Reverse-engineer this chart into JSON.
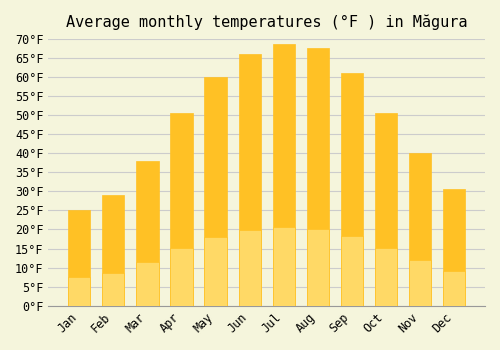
{
  "title": "Average monthly temperatures (°F ) in Măgura",
  "months": [
    "Jan",
    "Feb",
    "Mar",
    "Apr",
    "May",
    "Jun",
    "Jul",
    "Aug",
    "Sep",
    "Oct",
    "Nov",
    "Dec"
  ],
  "values": [
    25,
    29,
    38,
    50.5,
    60,
    66,
    68.5,
    67.5,
    61,
    50.5,
    40,
    30.5
  ],
  "bar_color_top": "#FFC125",
  "bar_color_bottom": "#FFD966",
  "ylim": [
    0,
    70
  ],
  "yticks": [
    0,
    5,
    10,
    15,
    20,
    25,
    30,
    35,
    40,
    45,
    50,
    55,
    60,
    65,
    70
  ],
  "ytick_labels": [
    "0°F",
    "5°F",
    "10°F",
    "15°F",
    "20°F",
    "25°F",
    "30°F",
    "35°F",
    "40°F",
    "45°F",
    "50°F",
    "55°F",
    "60°F",
    "65°F",
    "70°F"
  ],
  "background_color": "#F5F5DC",
  "grid_color": "#CCCCCC",
  "bar_edge_color": "#E8A000",
  "title_fontsize": 11,
  "tick_fontsize": 8.5,
  "font_family": "monospace"
}
